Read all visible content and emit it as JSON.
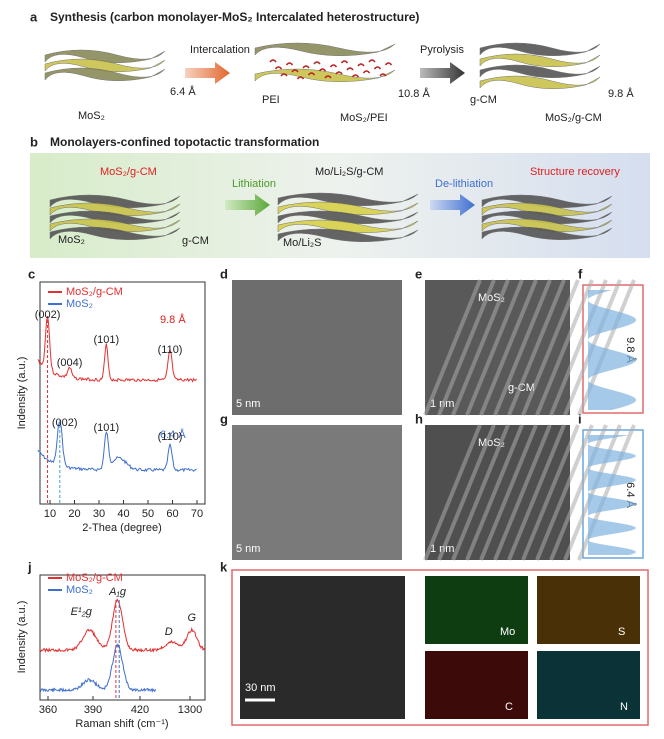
{
  "a": {
    "label": "a",
    "title": "Synthesis (carbon monolayer-MoS₂ Intercalated heterostructure)",
    "d1": "6.4 Å",
    "n1": "MoS₂",
    "arrow1": "Intercalation",
    "pei": "PEI",
    "d2": "10.8 Å",
    "n2": "MoS₂/PEI",
    "arrow2": "Pyrolysis",
    "gcm": "g-CM",
    "d3": "9.8 Å",
    "n3": "MoS₂/g-CM"
  },
  "b": {
    "label": "b",
    "title": "Monolayers-confined topotactic transformation",
    "s1": "MoS₂/g-CM",
    "s1a": "MoS₂",
    "s1b": "g-CM",
    "arrow1": "Lithiation",
    "s2": "Mo/Li₂S/g-CM",
    "s2a": "Mo/Li₂S",
    "arrow2": "De-lithiation",
    "s3": "Structure recovery"
  },
  "c": {
    "label": "c",
    "legend": [
      "MoS₂/g-CM",
      "MoS₂"
    ],
    "ylabel": "Indensity (a.u.)",
    "xlabel": "2-Thea (degree)",
    "xticks": [
      10,
      20,
      30,
      40,
      50,
      60,
      70
    ],
    "peaks": [
      "(002)",
      "(004)",
      "(101)",
      "(110)",
      "(002)",
      "(101)",
      "(110)"
    ],
    "d1": "9.8 Å",
    "d2": "6.4 Å"
  },
  "d": {
    "label": "d",
    "scale": "5 nm"
  },
  "e": {
    "label": "e",
    "mos2": "MoS₂",
    "scale": "1 nm",
    "gcm": "g-CM"
  },
  "f": {
    "label": "f",
    "d": "9.8 Å"
  },
  "g": {
    "label": "g",
    "scale": "5 nm"
  },
  "h": {
    "label": "h",
    "mos2": "MoS₂",
    "scale": "1 nm"
  },
  "i": {
    "label": "i",
    "d": "6.4 Å"
  },
  "j": {
    "label": "j",
    "legend": [
      "MoS₂/g-CM",
      "MoS₂"
    ],
    "ylabel": "Indensity (a.u.)",
    "xlabel": "Raman shift (cm⁻¹)",
    "xticks": [
      360,
      390,
      420,
      1300
    ],
    "peaks": [
      "E¹₂g",
      "A₁g",
      "D",
      "G"
    ]
  },
  "k": {
    "label": "k",
    "scale": "30 nm",
    "maps": [
      "Mo",
      "S",
      "C",
      "N"
    ]
  }
}
